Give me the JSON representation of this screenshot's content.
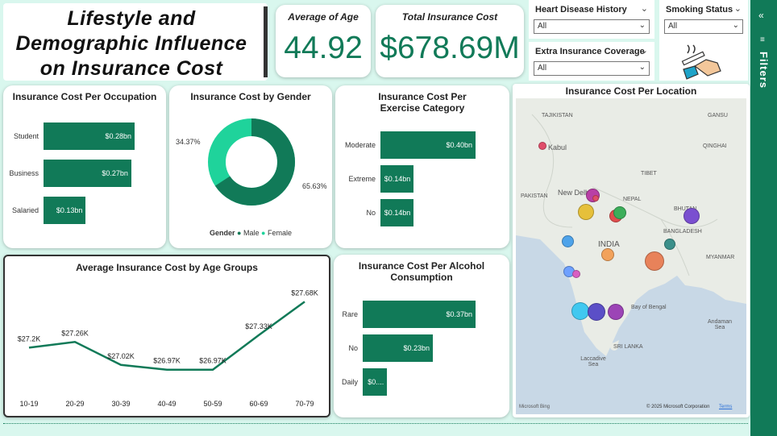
{
  "title": "Lifestyle and Demographic Influence on Insurance Cost",
  "kpis": {
    "avg_age_title": "Average of Age",
    "avg_age_value": "44.92",
    "total_cost_title": "Total Insurance Cost",
    "total_cost_value": "$678.69M"
  },
  "slicers": {
    "heart": {
      "label": "Heart Disease History",
      "value": "All"
    },
    "smoking": {
      "label": "Smoking Status",
      "value": "All"
    },
    "extra": {
      "label": "Extra Insurance Coverage",
      "value": "All"
    }
  },
  "filters_label": "Filters",
  "occupation": {
    "title": "Insurance Cost Per Occupation",
    "rows": [
      {
        "label": "Student",
        "value": "$0.28bn",
        "v": 0.28
      },
      {
        "label": "Business",
        "value": "$0.27bn",
        "v": 0.27
      },
      {
        "label": "Salaried",
        "value": "$0.13bn",
        "v": 0.13
      }
    ]
  },
  "gender": {
    "title": "Insurance Cost by Gender",
    "legend_title": "Gender",
    "male_label": "Male",
    "female_label": "Female",
    "male_pct": "65.63%",
    "female_pct": "34.37%",
    "male_color": "#117a58",
    "female_color": "#1fd39b"
  },
  "exercise": {
    "title": "Insurance Cost Per Exercise Category",
    "rows": [
      {
        "label": "Moderate",
        "value": "$0.40bn",
        "v": 0.4
      },
      {
        "label": "Extreme",
        "value": "$0.14bn",
        "v": 0.14
      },
      {
        "label": "No",
        "value": "$0.14bn",
        "v": 0.14
      }
    ]
  },
  "age_groups": {
    "title": "Average Insurance Cost by Age Groups"
  },
  "alcohol": {
    "title": "Insurance Cost Per Alcohol Consumption",
    "rows": [
      {
        "label": "Rare",
        "value": "$0.37bn",
        "v": 0.37
      },
      {
        "label": "No",
        "value": "$0.23bn",
        "v": 0.23
      },
      {
        "label": "Daily",
        "value": "$0....",
        "v": 0.08
      }
    ]
  },
  "map": {
    "title": "Insurance Cost Per Location",
    "labels": {
      "tajikistan": "TAJIKISTAN",
      "kabul": "Kabul",
      "pakistan": "PAKISTAN",
      "newdelhi": "New Delhi",
      "nepal": "NEPAL",
      "bhutan": "BHUTAN",
      "india": "INDIA",
      "bangladesh": "BANGLADESH",
      "myanmar": "MYANMAR",
      "bay": "Bay of Bengal",
      "andaman": "Andaman Sea",
      "lanka": "SRI LANKA",
      "laccadive": "Laccadive Sea",
      "tibet": "TIBET",
      "gansu": "GANSU",
      "qinghai": "QINGHAI"
    },
    "copyright": "© 2025 Microsoft Corporation",
    "terms": "Terms",
    "bing": "Microsoft Bing"
  },
  "chart_data": [
    {
      "type": "bar",
      "title": "Insurance Cost Per Occupation",
      "categories": [
        "Student",
        "Business",
        "Salaried"
      ],
      "values": [
        0.28,
        0.27,
        0.13
      ],
      "unit": "$bn"
    },
    {
      "type": "pie",
      "title": "Insurance Cost by Gender",
      "categories": [
        "Male",
        "Female"
      ],
      "values": [
        65.63,
        34.37
      ],
      "unit": "%"
    },
    {
      "type": "bar",
      "title": "Insurance Cost Per Exercise Category",
      "categories": [
        "Moderate",
        "Extreme",
        "No"
      ],
      "values": [
        0.4,
        0.14,
        0.14
      ],
      "unit": "$bn"
    },
    {
      "type": "line",
      "title": "Average Insurance Cost by Age Groups",
      "categories": [
        "10-19",
        "20-29",
        "30-39",
        "40-49",
        "50-59",
        "60-69",
        "70-79"
      ],
      "values": [
        27.2,
        27.26,
        27.02,
        26.97,
        26.97,
        27.33,
        27.68
      ],
      "labels": [
        "$27.2K",
        "$27.26K",
        "$27.02K",
        "$26.97K",
        "$26.97K",
        "$27.33K",
        "$27.68K"
      ],
      "ylim": [
        26.85,
        27.75
      ],
      "unit": "$K"
    },
    {
      "type": "bar",
      "title": "Insurance Cost Per Alcohol Consumption",
      "categories": [
        "Rare",
        "No",
        "Daily"
      ],
      "values": [
        0.37,
        0.23,
        0.08
      ],
      "unit": "$bn"
    }
  ]
}
